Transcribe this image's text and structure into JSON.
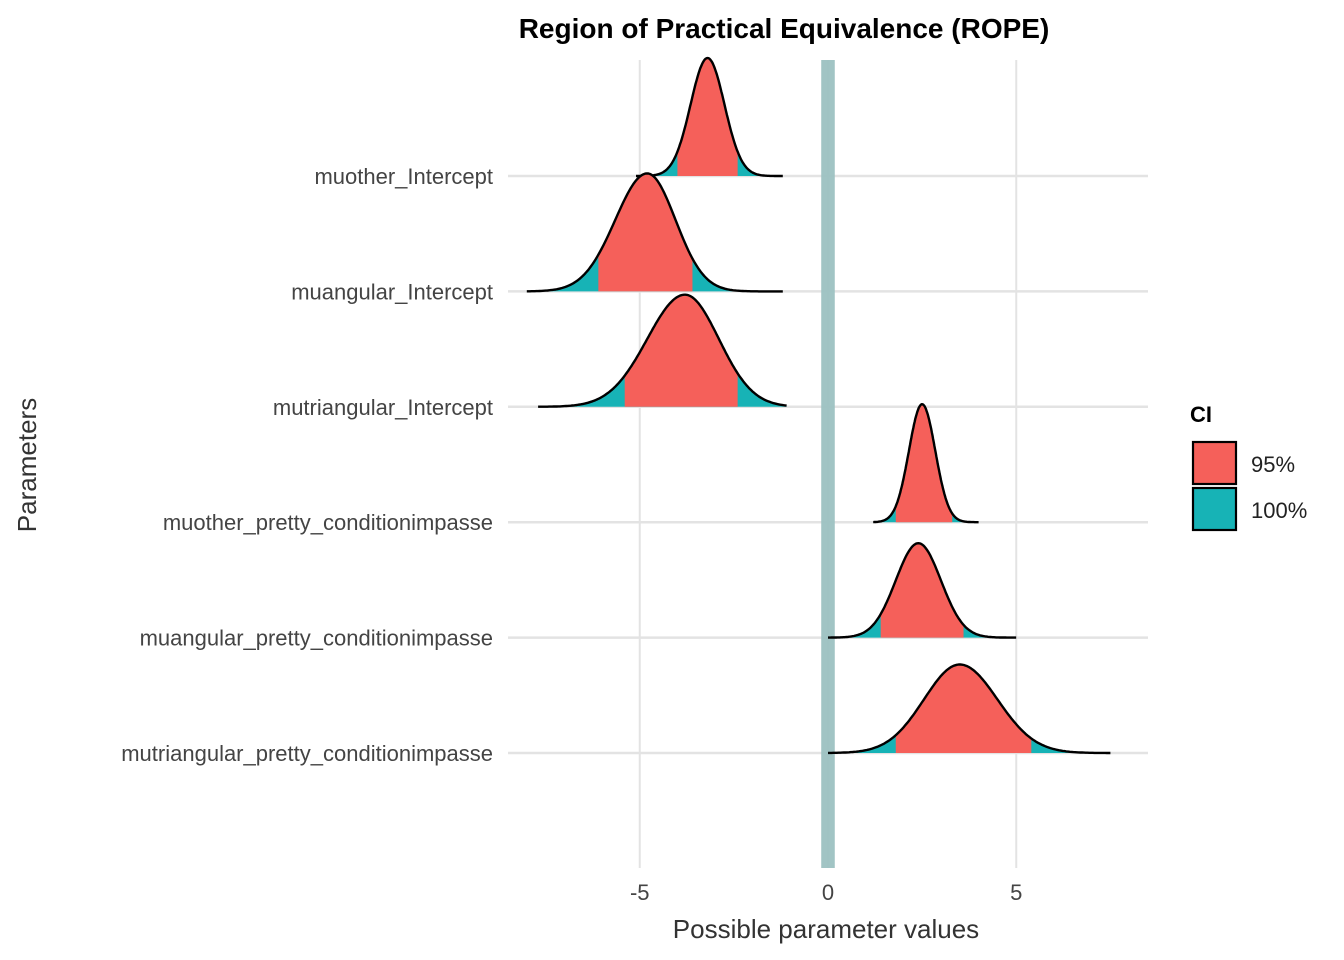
{
  "chart_data": {
    "type": "area",
    "subtype": "ridgeline-density",
    "title": "Region of Practical Equivalence (ROPE)",
    "xlabel": "Possible parameter values",
    "ylabel": "Parameters",
    "xlim": [
      -8.5,
      8.5
    ],
    "x_ticks": [
      -5,
      0,
      5
    ],
    "x_tick_labels": [
      "-5",
      "0",
      "5"
    ],
    "grid": true,
    "rope": {
      "low": -0.18,
      "high": 0.18,
      "color": "#9CC1C1"
    },
    "legend": {
      "title": "CI",
      "position": "right",
      "entries": [
        {
          "label": "95%",
          "color": "#F5605A"
        },
        {
          "label": "100%",
          "color": "#17B3B6"
        }
      ]
    },
    "series": [
      {
        "name": "muother_Intercept",
        "mode": -3.2,
        "sd_left": 0.45,
        "sd_right": 0.45,
        "min": -5.1,
        "max": -1.2,
        "ci95": [
          -4.0,
          -2.4
        ],
        "height": 1.0
      },
      {
        "name": "muangular_Intercept",
        "mode": -4.8,
        "sd_left": 0.85,
        "sd_right": 0.75,
        "min": -8.0,
        "max": -1.2,
        "ci95": [
          -6.1,
          -3.6
        ],
        "height": 1.0
      },
      {
        "name": "mutriangular_Intercept",
        "mode": -3.8,
        "sd_left": 1.0,
        "sd_right": 0.9,
        "min": -7.7,
        "max": -1.1,
        "ci95": [
          -5.4,
          -2.4
        ],
        "height": 0.95
      },
      {
        "name": "muother_pretty_conditionimpasse",
        "mode": 2.5,
        "sd_left": 0.35,
        "sd_right": 0.35,
        "min": 1.2,
        "max": 4.0,
        "ci95": [
          1.8,
          3.3
        ],
        "height": 1.0
      },
      {
        "name": "muangular_pretty_conditionimpasse",
        "mode": 2.4,
        "sd_left": 0.6,
        "sd_right": 0.6,
        "min": 0.0,
        "max": 5.0,
        "ci95": [
          1.4,
          3.6
        ],
        "height": 0.8
      },
      {
        "name": "mutriangular_pretty_conditionimpasse",
        "mode": 3.5,
        "sd_left": 0.95,
        "sd_right": 1.0,
        "min": 0.0,
        "max": 7.5,
        "ci95": [
          1.8,
          5.4
        ],
        "height": 0.75
      }
    ]
  }
}
